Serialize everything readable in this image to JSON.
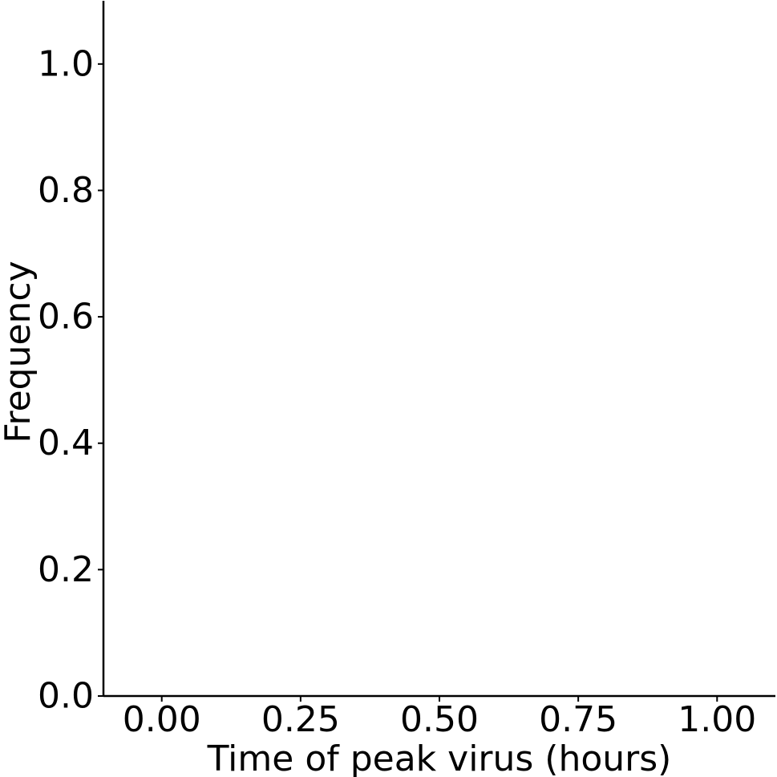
{
  "chart_data": {
    "type": "bar",
    "title": "",
    "xlabel": "Time of peak virus (hours)",
    "ylabel": "Frequency",
    "x": [],
    "values": [],
    "xlim": [
      -0.105,
      1.105
    ],
    "ylim": [
      0.0,
      1.1
    ],
    "x_ticks": [
      "0.00",
      "0.25",
      "0.50",
      "0.75",
      "1.00"
    ],
    "y_ticks": [
      "0.0",
      "0.2",
      "0.4",
      "0.6",
      "0.8",
      "1.0"
    ],
    "grid": false,
    "legend": "none",
    "spines": [
      "left",
      "bottom"
    ],
    "colors": {
      "axis": "#000000",
      "background": "#ffffff"
    }
  }
}
